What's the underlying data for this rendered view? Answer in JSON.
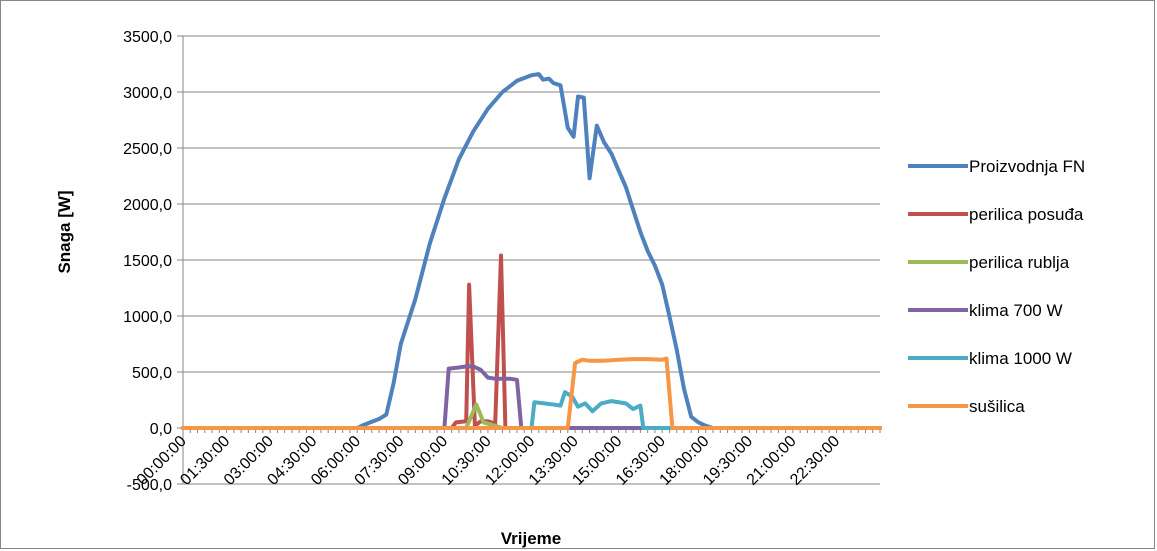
{
  "chart_data": {
    "type": "line",
    "title": "",
    "xlabel": "Vrijeme",
    "ylabel": "Snaga [W]",
    "ylim": [
      -500,
      3500
    ],
    "yticks": [
      "3500,0",
      "3000,0",
      "2500,0",
      "2000,0",
      "1500,0",
      "1000,0",
      "500,0",
      "0,0",
      "-500,0"
    ],
    "xtick_labels": [
      "00:00:00",
      "01:30:00",
      "03:00:00",
      "04:30:00",
      "06:00:00",
      "07:30:00",
      "09:00:00",
      "10:30:00",
      "12:00:00",
      "13:30:00",
      "15:00:00",
      "16:30:00",
      "18:00:00",
      "19:30:00",
      "21:00:00",
      "22:30:00"
    ],
    "x_unit": "hours",
    "grid": "horizontal",
    "legend_position": "right",
    "series": [
      {
        "name": "Proizvodnja FN",
        "color": "#4f81bd",
        "points": [
          [
            0,
            0
          ],
          [
            6,
            0
          ],
          [
            6.25,
            30
          ],
          [
            6.75,
            80
          ],
          [
            7,
            120
          ],
          [
            7.25,
            400
          ],
          [
            7.5,
            750
          ],
          [
            8,
            1150
          ],
          [
            8.5,
            1650
          ],
          [
            9,
            2050
          ],
          [
            9.5,
            2400
          ],
          [
            10,
            2650
          ],
          [
            10.5,
            2850
          ],
          [
            11,
            3000
          ],
          [
            11.5,
            3100
          ],
          [
            12,
            3150
          ],
          [
            12.25,
            3160
          ],
          [
            12.4,
            3110
          ],
          [
            12.6,
            3120
          ],
          [
            12.75,
            3080
          ],
          [
            13,
            3060
          ],
          [
            13.25,
            2680
          ],
          [
            13.45,
            2600
          ],
          [
            13.6,
            2960
          ],
          [
            13.8,
            2950
          ],
          [
            14,
            2230
          ],
          [
            14.25,
            2700
          ],
          [
            14.5,
            2550
          ],
          [
            14.75,
            2450
          ],
          [
            15,
            2300
          ],
          [
            15.25,
            2150
          ],
          [
            15.5,
            1950
          ],
          [
            15.75,
            1750
          ],
          [
            16,
            1580
          ],
          [
            16.25,
            1450
          ],
          [
            16.5,
            1280
          ],
          [
            16.75,
            1000
          ],
          [
            17,
            700
          ],
          [
            17.25,
            350
          ],
          [
            17.5,
            100
          ],
          [
            17.75,
            50
          ],
          [
            18,
            20
          ],
          [
            18.25,
            0
          ],
          [
            24,
            0
          ]
        ]
      },
      {
        "name": "perilica posuđa",
        "color": "#c0504d",
        "points": [
          [
            0,
            0
          ],
          [
            9.25,
            0
          ],
          [
            9.4,
            50
          ],
          [
            9.75,
            60
          ],
          [
            9.85,
            1280
          ],
          [
            10.05,
            20
          ],
          [
            10.25,
            60
          ],
          [
            10.5,
            60
          ],
          [
            10.75,
            40
          ],
          [
            10.95,
            1540
          ],
          [
            11.1,
            0
          ],
          [
            24,
            0
          ]
        ]
      },
      {
        "name": "perilica rublja",
        "color": "#9bbb59",
        "points": [
          [
            0,
            0
          ],
          [
            9.75,
            0
          ],
          [
            10.1,
            210
          ],
          [
            10.35,
            50
          ],
          [
            10.75,
            20
          ],
          [
            11,
            0
          ],
          [
            24,
            0
          ]
        ]
      },
      {
        "name": "klima 700 W",
        "color": "#8064a2",
        "points": [
          [
            0,
            0
          ],
          [
            9,
            0
          ],
          [
            9.15,
            530
          ],
          [
            9.5,
            540
          ],
          [
            9.75,
            550
          ],
          [
            10,
            550
          ],
          [
            10.25,
            520
          ],
          [
            10.5,
            450
          ],
          [
            10.75,
            440
          ],
          [
            11.25,
            440
          ],
          [
            11.5,
            430
          ],
          [
            11.65,
            0
          ],
          [
            24,
            0
          ]
        ]
      },
      {
        "name": "klima 1000 W",
        "color": "#4bacc6",
        "points": [
          [
            0,
            0
          ],
          [
            12,
            0
          ],
          [
            12.1,
            230
          ],
          [
            12.75,
            210
          ],
          [
            13,
            200
          ],
          [
            13.15,
            320
          ],
          [
            13.4,
            280
          ],
          [
            13.6,
            190
          ],
          [
            13.85,
            220
          ],
          [
            14.1,
            150
          ],
          [
            14.4,
            220
          ],
          [
            14.75,
            240
          ],
          [
            15.25,
            220
          ],
          [
            15.5,
            170
          ],
          [
            15.75,
            200
          ],
          [
            15.85,
            0
          ],
          [
            24,
            0
          ]
        ]
      },
      {
        "name": "sušilica",
        "color": "#f79646",
        "points": [
          [
            0,
            0
          ],
          [
            13.25,
            0
          ],
          [
            13.5,
            580
          ],
          [
            13.75,
            610
          ],
          [
            14,
            600
          ],
          [
            14.5,
            600
          ],
          [
            15,
            610
          ],
          [
            15.5,
            615
          ],
          [
            16,
            615
          ],
          [
            16.5,
            610
          ],
          [
            16.65,
            620
          ],
          [
            16.85,
            0
          ],
          [
            24,
            0
          ]
        ]
      }
    ]
  }
}
